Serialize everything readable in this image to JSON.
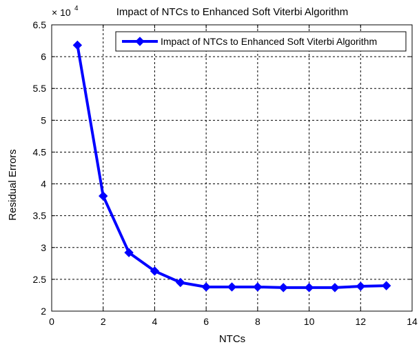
{
  "chart_data": {
    "type": "line",
    "title": "Impact of NTCs to Enhanced Soft Viterbi Algorithm",
    "xlabel": "NTCs",
    "ylabel": "Residual Errors",
    "exponent_base": "× 10",
    "exponent_power": "4",
    "xlim": [
      0,
      14
    ],
    "ylim": [
      2,
      6.5
    ],
    "xticks": [
      "0",
      "2",
      "4",
      "6",
      "8",
      "10",
      "12",
      "14"
    ],
    "yticks": [
      "2",
      "2.5",
      "3",
      "3.5",
      "4",
      "4.5",
      "5",
      "5.5",
      "6",
      "6.5"
    ],
    "grid": true,
    "legend_position": "top-right",
    "series": [
      {
        "name": "Impact of NTCs to Enhanced Soft Viterbi Algorithm",
        "color": "#0000ff",
        "marker": "diamond",
        "x": [
          1,
          2,
          3,
          4,
          5,
          6,
          7,
          8,
          9,
          10,
          11,
          12,
          13
        ],
        "y": [
          6.18,
          3.81,
          2.92,
          2.63,
          2.45,
          2.38,
          2.38,
          2.38,
          2.37,
          2.37,
          2.37,
          2.39,
          2.4
        ]
      }
    ]
  }
}
